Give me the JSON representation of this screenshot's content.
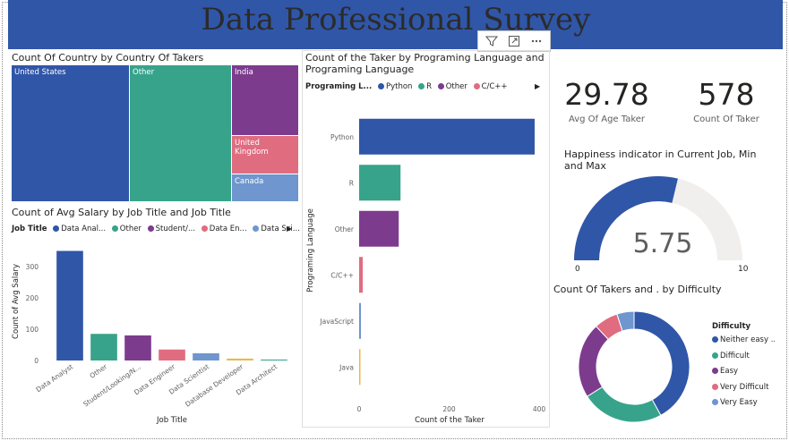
{
  "banner": {
    "title": "Data Professional Survey"
  },
  "treemap": {
    "title": "Count Of Country by Country Of Takers",
    "tiles": [
      {
        "label": "United States",
        "color": "#3056a8"
      },
      {
        "label": "Other",
        "color": "#37a38a"
      },
      {
        "label": "India",
        "color": "#7d3b8e"
      },
      {
        "label": "United Kingdom",
        "color": "#e06c80"
      },
      {
        "label": "Canada",
        "color": "#6f96ce"
      }
    ]
  },
  "salary_chart": {
    "title": "Count of Avg Salary by Job Title and Job Title",
    "legend_title": "Job Title",
    "legend_items": [
      {
        "label": "Data Anal...",
        "color": "#3056a8"
      },
      {
        "label": "Other",
        "color": "#37a38a"
      },
      {
        "label": "Student/...",
        "color": "#7d3b8e"
      },
      {
        "label": "Data En...",
        "color": "#e06c80"
      },
      {
        "label": "Data Sci...",
        "color": "#6f96ce"
      }
    ],
    "xlabel": "Job Title",
    "ylabel": "Count of Avg Salary"
  },
  "language_chart": {
    "title_line1": "Count of the Taker by Programing Language and",
    "title_line2": "Programing Language",
    "legend_title": "Programing L...",
    "legend_items": [
      {
        "label": "Python",
        "color": "#3056a8"
      },
      {
        "label": "R",
        "color": "#37a38a"
      },
      {
        "label": "Other",
        "color": "#7d3b8e"
      },
      {
        "label": "C/C++",
        "color": "#e06c80"
      }
    ],
    "xlabel": "Count of the Taker",
    "ylabel": "Programing Language"
  },
  "kpis": {
    "avg_age_value": "29.78",
    "avg_age_label": "Avg Of Age Taker",
    "count_value": "578",
    "count_label": "Count Of Taker"
  },
  "gauge": {
    "title_line1": "Happiness indicator in Current Job, Min",
    "title_line2": "and Max",
    "value_text": "5.75",
    "min_text": "0",
    "max_text": "10",
    "value": 5.75,
    "min": 0,
    "max": 10,
    "fill_color": "#3056a8",
    "track_color": "#f0efee"
  },
  "difficulty_chart": {
    "title": "Count Of Takers and . by Difficulty",
    "legend_title": "Difficulty"
  },
  "toolbar": {
    "filter_icon": "filter-icon",
    "focus_icon": "focus-mode-icon",
    "more_icon": "more-options-icon"
  },
  "chart_data": [
    {
      "type": "bar",
      "title": "Count of Avg Salary by Job Title and Job Title",
      "categories": [
        "Data Analyst",
        "Other",
        "Student/Looking/N...",
        "Data Engineer",
        "Data Scientist",
        "Database Developer",
        "Data Architect"
      ],
      "values": [
        350,
        85,
        80,
        35,
        23,
        6,
        3
      ],
      "colors": [
        "#3056a8",
        "#37a38a",
        "#7d3b8e",
        "#e06c80",
        "#6f96ce",
        "#e8b94a",
        "#37a38a"
      ],
      "xlabel": "Job Title",
      "ylabel": "Count of Avg Salary",
      "yticks": [
        "0",
        "100",
        "200",
        "300"
      ],
      "ylim": [
        0,
        380
      ],
      "grid": false
    },
    {
      "type": "bar",
      "orientation": "horizontal",
      "title": "Count of the Taker by Programing Language and Programing Language",
      "categories": [
        "Python",
        "R",
        "Other",
        "C/C++",
        "JavaScript",
        "Java"
      ],
      "values": [
        390,
        92,
        88,
        8,
        4,
        2
      ],
      "colors": [
        "#3056a8",
        "#37a38a",
        "#7d3b8e",
        "#e06c80",
        "#6f96ce",
        "#e8b94a"
      ],
      "xlabel": "Count of the Taker",
      "ylabel": "Programing Language",
      "xticks": [
        "0",
        "200",
        "400"
      ],
      "xlim": [
        0,
        400
      ],
      "grid": false
    },
    {
      "type": "pie",
      "donut": true,
      "title": "Count Of Takers and . by Difficulty",
      "categories": [
        "Neither easy ...",
        "Difficult",
        "Easy",
        "Very Difficult",
        "Very Easy"
      ],
      "values": [
        42,
        24,
        22,
        7,
        5
      ],
      "colors": [
        "#3056a8",
        "#37a38a",
        "#7d3b8e",
        "#e06c80",
        "#6f96ce"
      ],
      "legend": "right"
    }
  ]
}
